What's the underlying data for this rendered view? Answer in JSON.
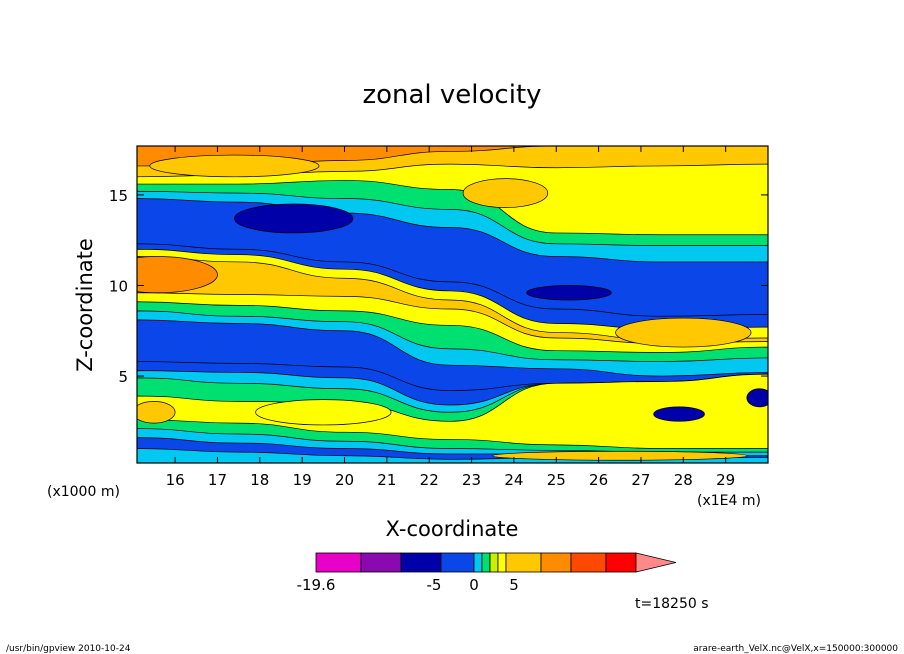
{
  "chart_data": {
    "type": "heatmap",
    "title": "zonal velocity",
    "xlabel": "X-coordinate",
    "ylabel": "Z-coordinate",
    "x_unit_left": "(x1000 m)",
    "x_unit_right": "(x1E4 m)",
    "xlim": [
      15.1,
      30.0
    ],
    "ylim": [
      0.2,
      17.7
    ],
    "xticks": [
      16,
      17,
      18,
      19,
      20,
      21,
      22,
      23,
      24,
      25,
      26,
      27,
      28,
      29
    ],
    "yticks": [
      5,
      10,
      15
    ],
    "time_label": "t=18250 s",
    "colorbar": {
      "colors": [
        "#e800c8",
        "#8a0ab0",
        "#0000a8",
        "#0a46e8",
        "#00c8f0",
        "#00e070",
        "#c8f000",
        "#ffff00",
        "#ffc800",
        "#ff8c00",
        "#ff4800",
        "#ff0000",
        "#ff8888"
      ],
      "labels": [
        {
          "value": "-19.6",
          "pos": 0
        },
        {
          "value": "-5",
          "pos": 3
        },
        {
          "value": "0",
          "pos": 6
        },
        {
          "value": "5",
          "pos": 9
        }
      ]
    },
    "bands": [
      {
        "z": [
          17.7,
          17.7,
          17.7,
          17.7,
          17.7,
          17.7,
          17.7
        ],
        "color": "#ff8c00"
      },
      {
        "z": [
          16.6,
          16.6,
          16.9,
          17.4,
          17.7,
          17.7,
          17.7
        ],
        "color": "#ffc800"
      },
      {
        "z": [
          16.0,
          16.1,
          16.3,
          16.7,
          16.5,
          16.6,
          16.7
        ],
        "color": "#ffff00"
      },
      {
        "z": [
          15.6,
          15.6,
          15.8,
          15.3,
          12.9,
          12.8,
          12.8
        ],
        "color": "#00e070"
      },
      {
        "z": [
          15.2,
          15.1,
          14.8,
          14.2,
          12.3,
          12.2,
          12.2
        ],
        "color": "#00c8f0"
      },
      {
        "z": [
          14.8,
          14.6,
          14.0,
          13.2,
          11.6,
          11.3,
          11.3
        ],
        "color": "#0a46e8"
      },
      {
        "z": [
          12.3,
          12.0,
          11.3,
          10.2,
          8.7,
          8.3,
          8.4
        ],
        "color": "#0a46e8"
      },
      {
        "z": [
          12.0,
          11.7,
          10.9,
          9.7,
          7.9,
          7.6,
          7.7
        ],
        "color": "#ffff00"
      },
      {
        "z": [
          11.6,
          11.3,
          10.4,
          9.2,
          7.4,
          7.0,
          7.1
        ],
        "color": "#ffc800"
      },
      {
        "z": [
          9.6,
          9.5,
          9.4,
          8.7,
          7.1,
          6.8,
          6.9
        ],
        "color": "#ffff00"
      },
      {
        "z": [
          9.1,
          8.9,
          8.6,
          7.8,
          6.4,
          6.3,
          6.6
        ],
        "color": "#00e070"
      },
      {
        "z": [
          8.6,
          8.3,
          8.0,
          6.5,
          5.9,
          5.8,
          6.0
        ],
        "color": "#00c8f0"
      },
      {
        "z": [
          8.1,
          7.9,
          7.5,
          5.6,
          5.4,
          5.0,
          5.2
        ],
        "color": "#0a46e8"
      },
      {
        "z": [
          5.8,
          5.7,
          5.5,
          4.2,
          4.6,
          4.7,
          5.1
        ],
        "color": "#0a46e8"
      },
      {
        "z": [
          5.3,
          5.2,
          4.9,
          3.4,
          4.6,
          4.7,
          5.1
        ],
        "color": "#00c8f0"
      },
      {
        "z": [
          4.9,
          4.6,
          4.3,
          3.0,
          4.6,
          4.7,
          5.1
        ],
        "color": "#00e070"
      },
      {
        "z": [
          3.9,
          3.6,
          3.5,
          2.5,
          4.6,
          4.7,
          5.1
        ],
        "color": "#ffff00"
      },
      {
        "z": [
          2.6,
          2.4,
          1.9,
          1.5,
          1.2,
          1.0,
          1.0
        ],
        "color": "#00e070"
      },
      {
        "z": [
          2.1,
          1.8,
          1.4,
          1.0,
          0.9,
          0.8,
          0.8
        ],
        "color": "#00c8f0"
      },
      {
        "z": [
          1.6,
          1.3,
          1.0,
          0.7,
          0.7,
          0.6,
          0.6
        ],
        "color": "#0a46e8"
      },
      {
        "z": [
          1.0,
          0.8,
          0.6,
          0.4,
          0.5,
          0.5,
          0.5
        ],
        "color": "#00c8f0"
      }
    ],
    "band_x": [
      15.1,
      17.5,
      20.0,
      22.5,
      25.0,
      27.5,
      30.0
    ],
    "blobs": [
      {
        "cx": 23.8,
        "cy": 15.1,
        "rx": 1.0,
        "ry": 0.8,
        "color": "#ffc800"
      },
      {
        "cx": 17.4,
        "cy": 16.6,
        "rx": 2.0,
        "ry": 0.6,
        "color": "#ffc800"
      },
      {
        "cx": 18.8,
        "cy": 13.7,
        "rx": 1.4,
        "ry": 0.8,
        "color": "#0000a8"
      },
      {
        "cx": 25.3,
        "cy": 9.6,
        "rx": 1.0,
        "ry": 0.4,
        "color": "#0000a8"
      },
      {
        "cx": 28.0,
        "cy": 7.4,
        "rx": 1.6,
        "ry": 0.8,
        "color": "#ffc800"
      },
      {
        "cx": 19.5,
        "cy": 3.0,
        "rx": 1.6,
        "ry": 0.7,
        "color": "#ffff00"
      },
      {
        "cx": 27.9,
        "cy": 2.9,
        "rx": 0.6,
        "ry": 0.4,
        "color": "#0000a8"
      },
      {
        "cx": 29.8,
        "cy": 3.8,
        "rx": 0.3,
        "ry": 0.5,
        "color": "#0000a8"
      },
      {
        "cx": 15.5,
        "cy": 3.0,
        "rx": 0.5,
        "ry": 0.6,
        "color": "#ffc800"
      },
      {
        "cx": 15.6,
        "cy": 10.6,
        "rx": 1.4,
        "ry": 1.0,
        "color": "#ff8c00"
      },
      {
        "cx": 26.5,
        "cy": 0.6,
        "rx": 3.0,
        "ry": 0.25,
        "color": "#ffc800"
      }
    ]
  },
  "footer": {
    "left": "/usr/bin/gpview  2010-10-24",
    "right": "arare-earth_VelX.nc@VelX,x=150000:300000"
  }
}
